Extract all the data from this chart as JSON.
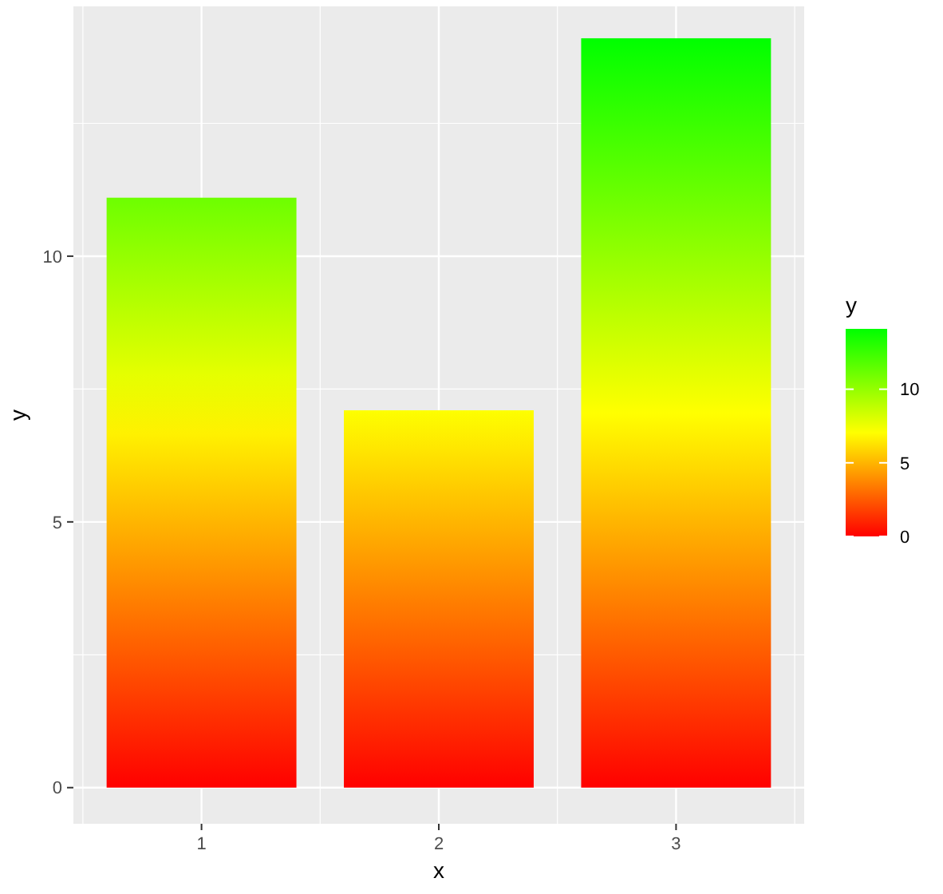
{
  "chart_data": {
    "type": "bar",
    "xlabel": "x",
    "ylabel": "y",
    "clabel": "y",
    "x": [
      1,
      2,
      3
    ],
    "values": [
      11.1,
      7.1,
      14.1
    ],
    "xlim": [
      0.46,
      3.54
    ],
    "xticks": [
      1,
      2,
      3
    ],
    "ylim": [
      -0.68,
      14.7
    ],
    "yticks": [
      0,
      5,
      10
    ],
    "clim": [
      0,
      14.1
    ],
    "cticks": [
      0,
      5,
      10
    ],
    "grid": true
  }
}
